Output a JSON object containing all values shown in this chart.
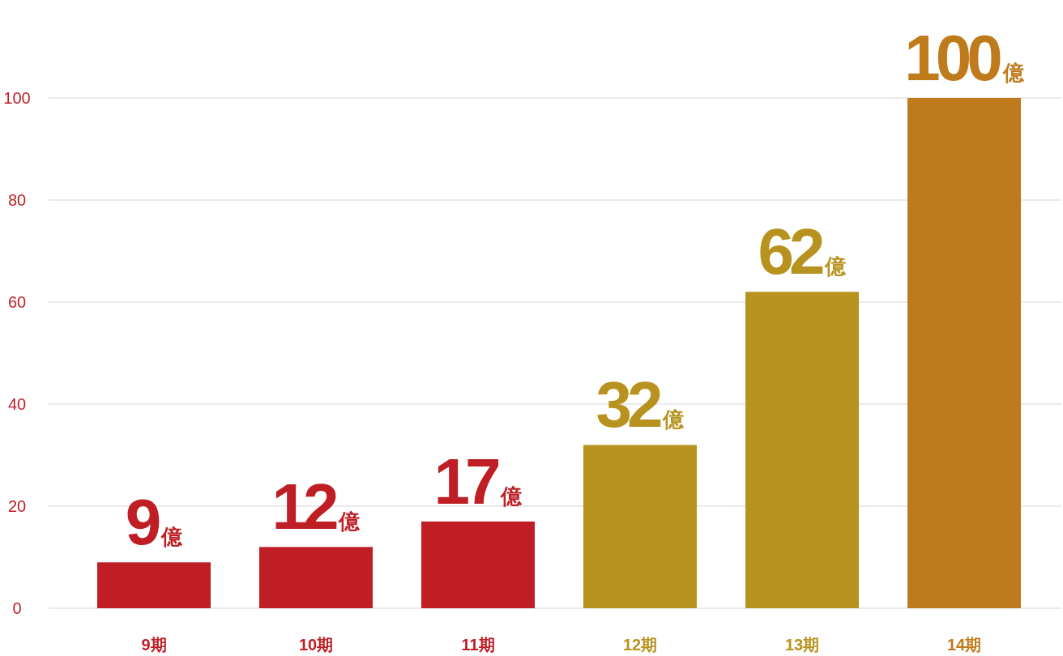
{
  "chart_data": {
    "type": "bar",
    "categories": [
      "9期",
      "10期",
      "11期",
      "12期",
      "13期",
      "14期"
    ],
    "values": [
      9,
      12,
      17,
      32,
      62,
      100
    ],
    "colors": [
      "#be1e24",
      "#be1e24",
      "#be1e24",
      "#b8921e",
      "#b8921e",
      "#bf7a1c"
    ],
    "value_labels": [
      "9億",
      "12億",
      "17億",
      "32億",
      "62億",
      "100億"
    ],
    "ylim": [
      0,
      100
    ],
    "yticks": [
      0,
      20,
      40,
      60,
      80,
      100
    ],
    "grid": "y"
  }
}
